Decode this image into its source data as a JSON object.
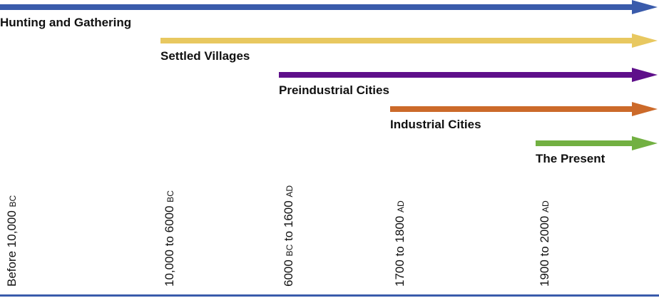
{
  "colors": {
    "hunting": "#3a5bab",
    "villages": "#e8c860",
    "preindustrial": "#5e0f8a",
    "industrial": "#cc6a2a",
    "present": "#72b042",
    "baseline": "#3a5bab"
  },
  "stages": [
    {
      "label": "Hunting and Gathering"
    },
    {
      "label": "Settled Villages"
    },
    {
      "label": "Preindustrial Cities"
    },
    {
      "label": "Industrial Cities"
    },
    {
      "label": "The Present"
    }
  ],
  "periods": [
    {
      "main": "Before 10,000",
      "era": "BC"
    },
    {
      "main": "10,000 to 6000",
      "era": "BC"
    },
    {
      "main": "6000",
      "era_mid": "BC",
      "mid": " to 1600",
      "era": "AD"
    },
    {
      "main": "1700 to 1800",
      "era": "AD"
    },
    {
      "main": "1900 to 2000",
      "era": "AD"
    }
  ]
}
